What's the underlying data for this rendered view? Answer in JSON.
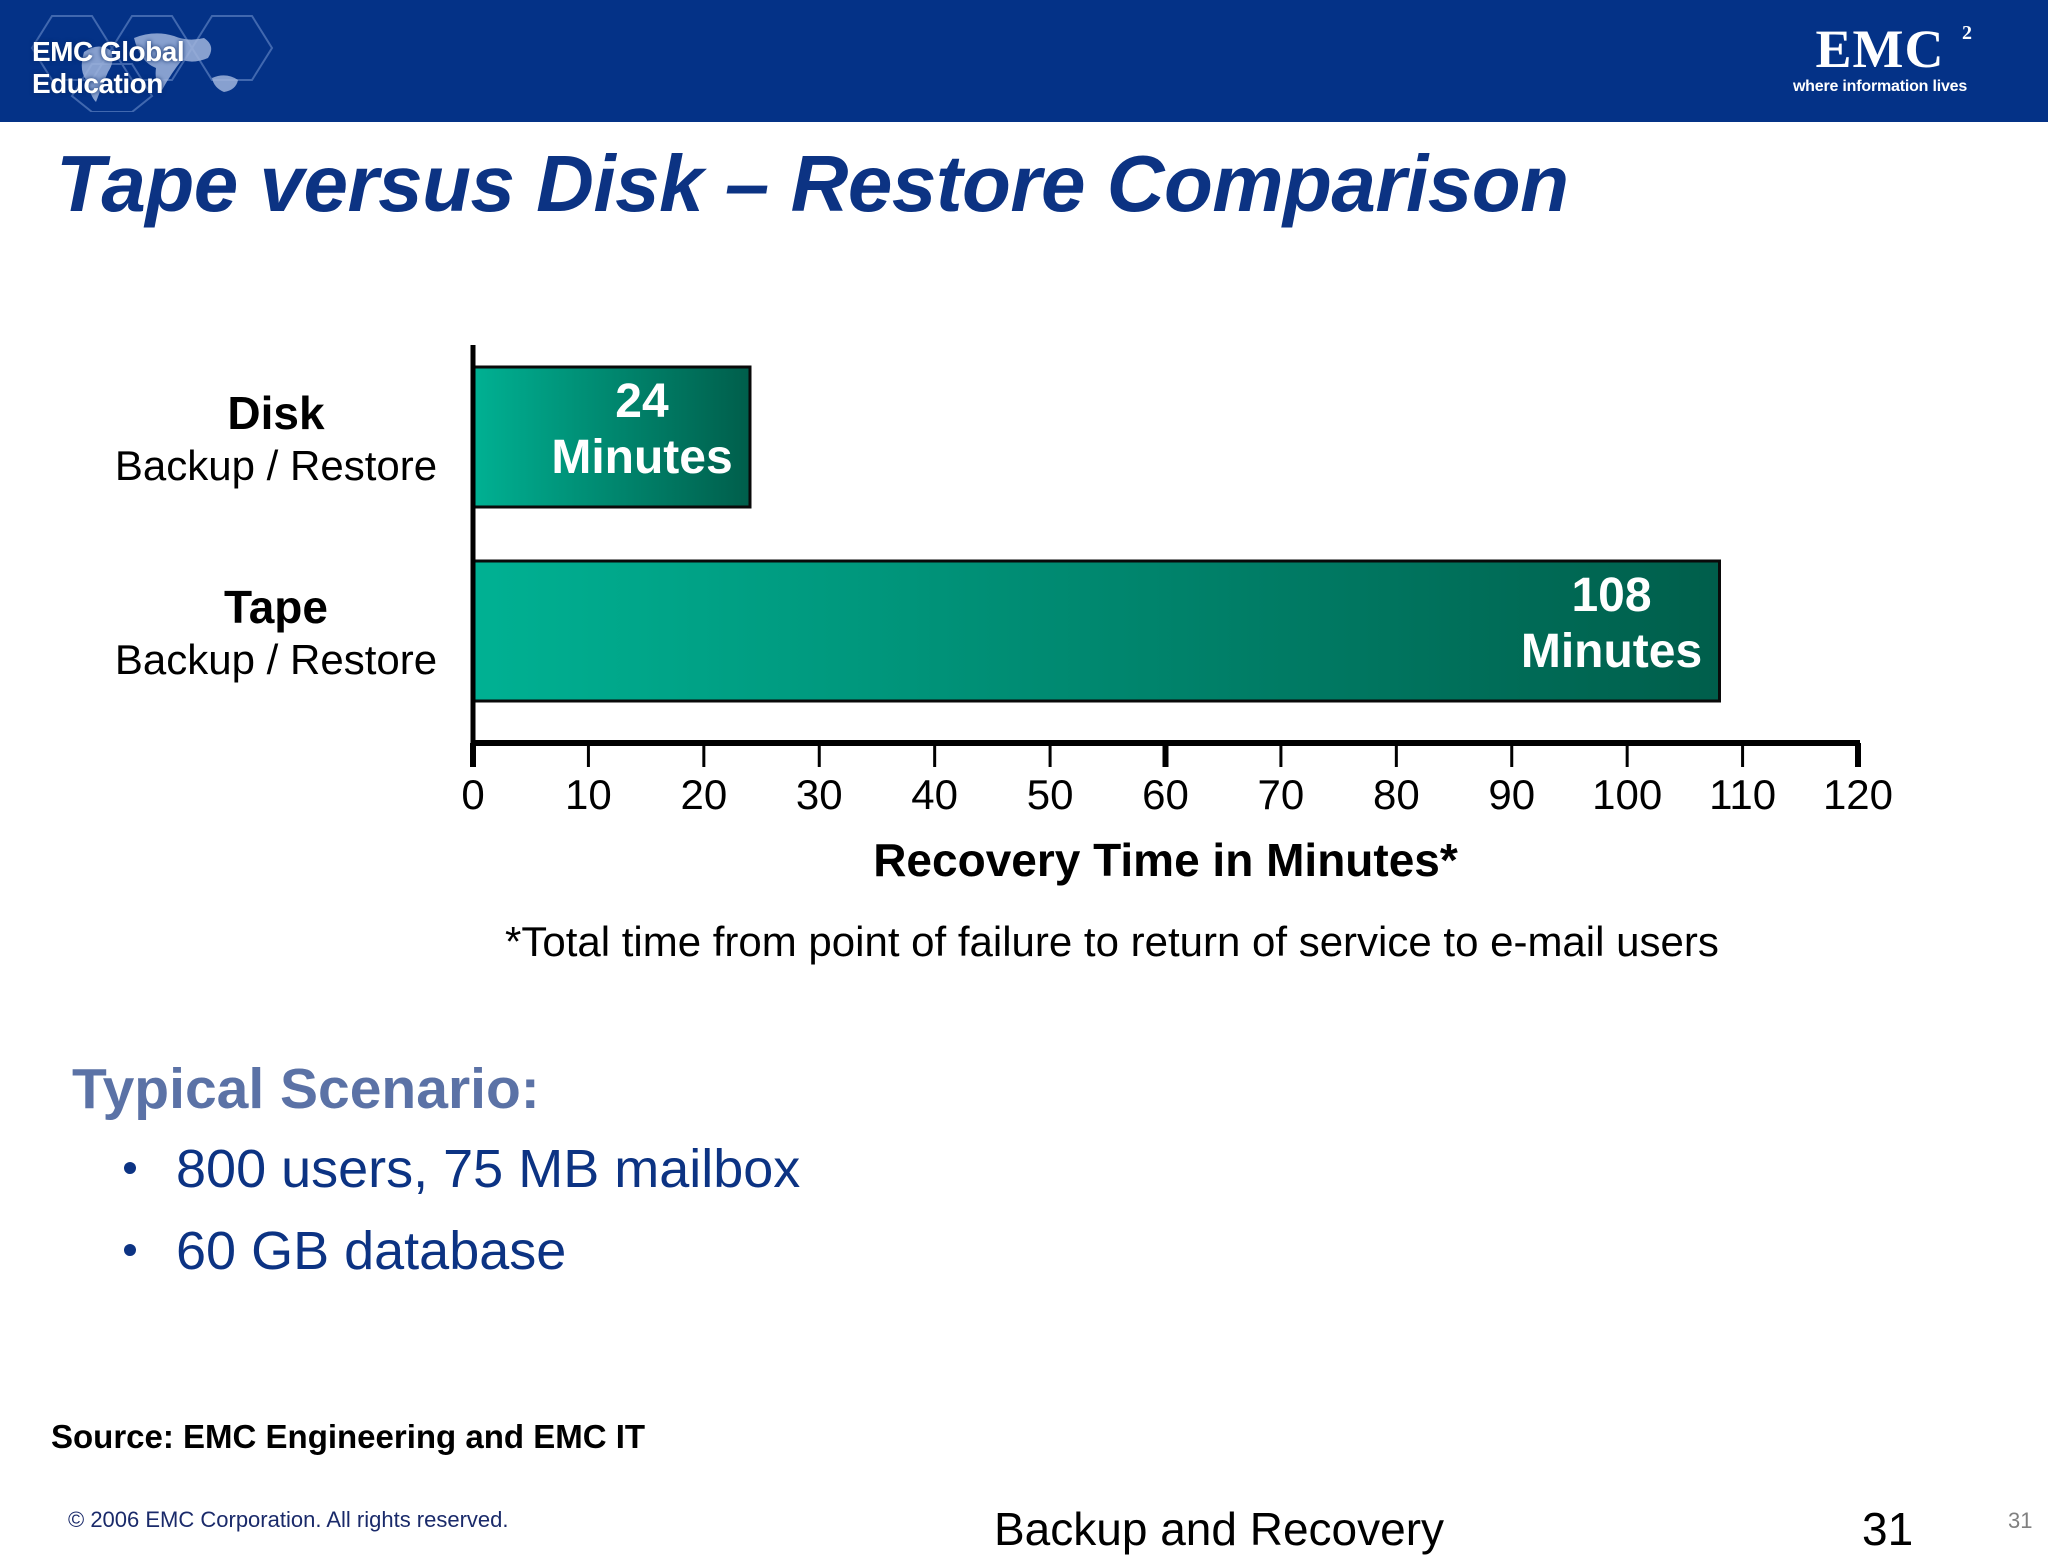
{
  "header": {
    "left_logo_text": "EMC Global Education",
    "brand": "EMC",
    "brand_superscript": "2",
    "brand_tagline": "where information lives"
  },
  "slide": {
    "title": "Tape versus Disk – Restore Comparison",
    "footnote": "*Total time from point of failure to return of service to e-mail users",
    "scenario_heading": "Typical Scenario:",
    "bullets": [
      "800 users, 75 MB mailbox",
      "60 GB database"
    ],
    "source": "Source: EMC Engineering and EMC IT"
  },
  "footer": {
    "copyright": "© 2006 EMC Corporation. All rights reserved.",
    "course_title": "Backup and Recovery",
    "page_number": "31",
    "page_number_small": "31"
  },
  "colors": {
    "header_bg": "#043287",
    "title": "#0c3383",
    "scenario_heading": "#5b72a6",
    "bar_light": "#00b193",
    "bar_dark": "#005e4b"
  },
  "chart_data": {
    "type": "bar",
    "orientation": "horizontal",
    "categories": [
      {
        "name": "Disk",
        "sub": "Backup / Restore"
      },
      {
        "name": "Tape",
        "sub": "Backup / Restore"
      }
    ],
    "values": [
      24,
      108
    ],
    "data_labels": [
      [
        "24",
        "Minutes"
      ],
      [
        "108",
        "Minutes"
      ]
    ],
    "xlabel": "Recovery Time in Minutes*",
    "xlim": [
      0,
      120
    ],
    "xticks": [
      0,
      10,
      20,
      30,
      40,
      50,
      60,
      70,
      80,
      90,
      100,
      110,
      120
    ],
    "grid": false
  }
}
